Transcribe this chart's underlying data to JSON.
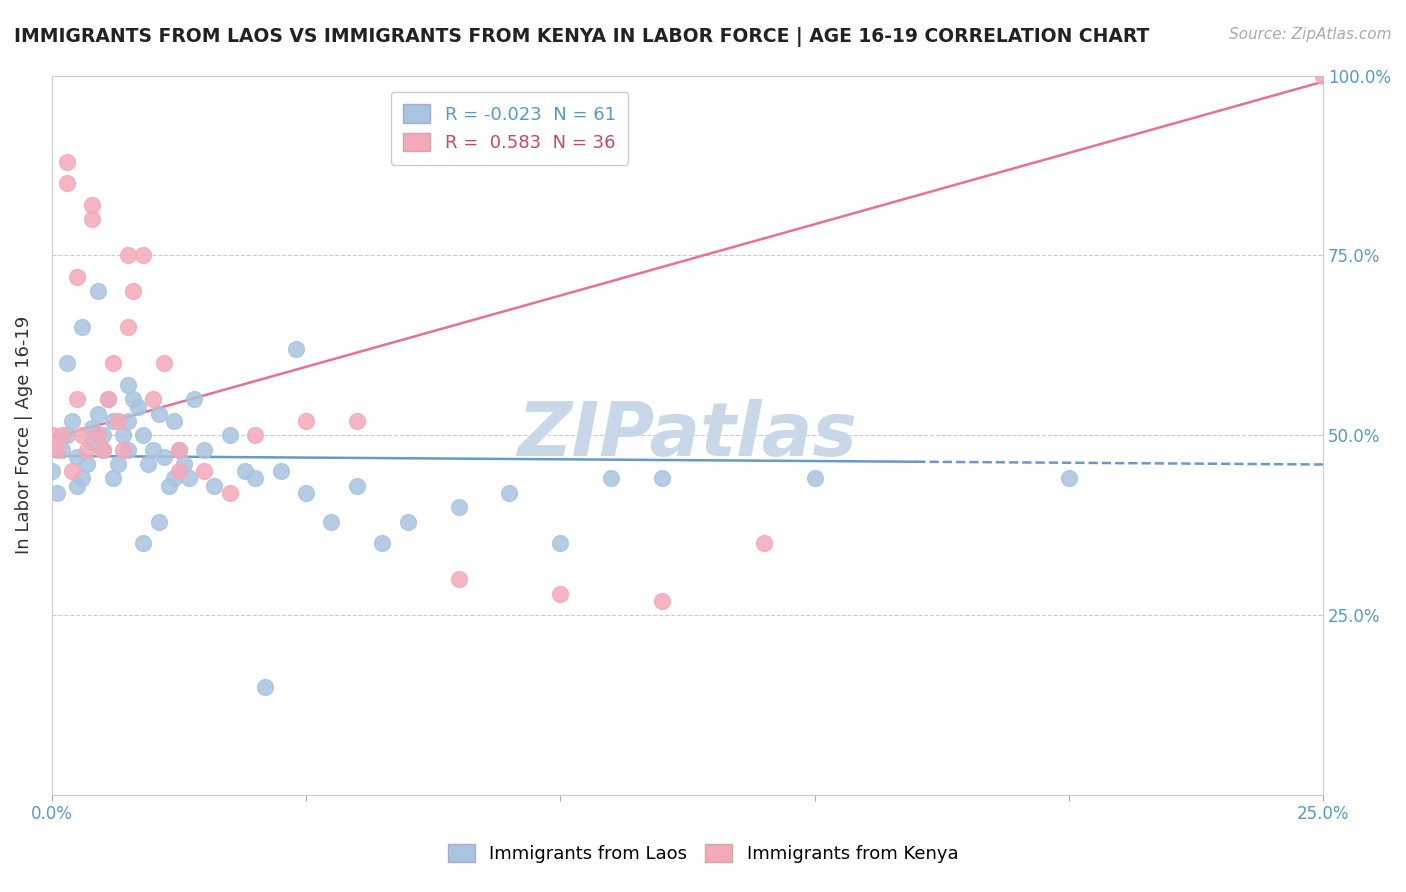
{
  "title": "IMMIGRANTS FROM LAOS VS IMMIGRANTS FROM KENYA IN LABOR FORCE | AGE 16-19 CORRELATION CHART",
  "source": "Source: ZipAtlas.com",
  "ylabel": "In Labor Force | Age 16-19",
  "xlim": [
    0.0,
    0.25
  ],
  "ylim": [
    0.0,
    1.0
  ],
  "laos_color": "#a8c4e0",
  "kenya_color": "#f4a8b8",
  "laos_line_color": "#6699cc",
  "kenya_line_color": "#e87090",
  "laos_R": -0.023,
  "laos_N": 61,
  "kenya_R": 0.583,
  "kenya_N": 36,
  "watermark": "ZIPatlas",
  "watermark_color": "#c8d8e8",
  "laos_x": [
    0.0,
    0.001,
    0.002,
    0.003,
    0.004,
    0.005,
    0.005,
    0.006,
    0.007,
    0.008,
    0.008,
    0.009,
    0.01,
    0.01,
    0.011,
    0.012,
    0.013,
    0.014,
    0.015,
    0.015,
    0.016,
    0.017,
    0.018,
    0.019,
    0.02,
    0.021,
    0.022,
    0.023,
    0.024,
    0.025,
    0.026,
    0.027,
    0.028,
    0.03,
    0.032,
    0.035,
    0.038,
    0.04,
    0.042,
    0.045,
    0.048,
    0.05,
    0.055,
    0.06,
    0.065,
    0.07,
    0.08,
    0.09,
    0.1,
    0.11,
    0.003,
    0.006,
    0.009,
    0.012,
    0.015,
    0.018,
    0.021,
    0.024,
    0.12,
    0.15,
    0.2
  ],
  "laos_y": [
    0.45,
    0.42,
    0.48,
    0.5,
    0.52,
    0.43,
    0.47,
    0.44,
    0.46,
    0.51,
    0.49,
    0.53,
    0.48,
    0.5,
    0.55,
    0.44,
    0.46,
    0.5,
    0.48,
    0.52,
    0.55,
    0.54,
    0.5,
    0.46,
    0.48,
    0.53,
    0.47,
    0.43,
    0.52,
    0.48,
    0.46,
    0.44,
    0.55,
    0.48,
    0.43,
    0.5,
    0.45,
    0.44,
    0.15,
    0.45,
    0.62,
    0.42,
    0.38,
    0.43,
    0.35,
    0.38,
    0.4,
    0.42,
    0.35,
    0.44,
    0.6,
    0.65,
    0.7,
    0.52,
    0.57,
    0.35,
    0.38,
    0.44,
    0.44,
    0.44,
    0.44
  ],
  "kenya_x": [
    0.0,
    0.001,
    0.002,
    0.003,
    0.004,
    0.005,
    0.006,
    0.007,
    0.008,
    0.009,
    0.01,
    0.011,
    0.012,
    0.013,
    0.014,
    0.015,
    0.016,
    0.018,
    0.02,
    0.022,
    0.025,
    0.03,
    0.035,
    0.04,
    0.05,
    0.06,
    0.08,
    0.1,
    0.12,
    0.14,
    0.003,
    0.005,
    0.008,
    0.015,
    0.025,
    0.25
  ],
  "kenya_y": [
    0.5,
    0.48,
    0.5,
    0.85,
    0.45,
    0.55,
    0.5,
    0.48,
    0.82,
    0.5,
    0.48,
    0.55,
    0.6,
    0.52,
    0.48,
    0.65,
    0.7,
    0.75,
    0.55,
    0.6,
    0.48,
    0.45,
    0.42,
    0.5,
    0.52,
    0.52,
    0.3,
    0.28,
    0.27,
    0.35,
    0.88,
    0.72,
    0.8,
    0.75,
    0.45,
    1.0
  ]
}
